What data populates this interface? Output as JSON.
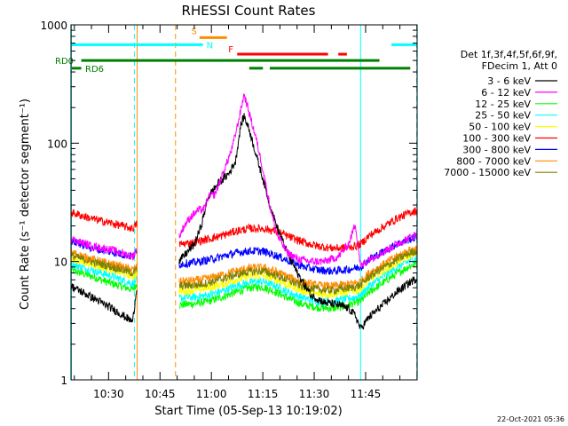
{
  "title": "RHESSI Count Rates",
  "footer_date": "22-Oct-2021 05:36",
  "legend": {
    "header": [
      "Det 1f,3f,4f,5f,6f,9f,",
      "FDecim 1, Att 0"
    ],
    "entries": [
      {
        "label": "3 - 6 keV",
        "color": "#000000"
      },
      {
        "label": "6 - 12 keV",
        "color": "#ff00ff"
      },
      {
        "label": "12 - 25 keV",
        "color": "#00ff00"
      },
      {
        "label": "25 - 50 keV",
        "color": "#00ffff"
      },
      {
        "label": "50 - 100 keV",
        "color": "#ffff00"
      },
      {
        "label": "100 - 300 keV",
        "color": "#ff0000"
      },
      {
        "label": "300 - 800 keV",
        "color": "#0000ff"
      },
      {
        "label": "800 - 7000 keV",
        "color": "#ff8c00"
      },
      {
        "label": "7000 - 15000 keV",
        "color": "#808000"
      }
    ]
  },
  "flags": [
    {
      "label": "S",
      "color": "#ff8c00",
      "segments": [
        [
          37.5,
          45.5
        ]
      ],
      "level": 780
    },
    {
      "label": "N",
      "color": "#00ffff",
      "segments": [
        [
          0,
          38.5
        ],
        [
          93.5,
          101
        ]
      ],
      "level": 680
    },
    {
      "label": "F",
      "color": "#ff0000",
      "segments": [
        [
          48.5,
          75
        ],
        [
          78,
          80.5
        ]
      ],
      "level": 565
    },
    {
      "label": "RD0",
      "color": "#008000",
      "segments": [
        [
          3,
          90
        ]
      ],
      "level": 500
    },
    {
      "label": "RD6",
      "color": "#008000",
      "segments": [
        [
          0,
          3
        ],
        [
          52,
          56
        ],
        [
          58,
          90
        ],
        [
          90,
          99
        ]
      ],
      "level": 430
    }
  ],
  "chart_data": {
    "type": "line",
    "title": "RHESSI Count Rates",
    "xlabel": "Start Time (05-Sep-13 10:19:02)",
    "ylabel": "Count Rate (s⁻¹ detector segment⁻¹)",
    "x_unit": "minutes after 10:19:02",
    "xlim": [
      0,
      101
    ],
    "ylim": [
      1,
      1000
    ],
    "yscale": "log",
    "x_ticks": [
      {
        "value": 10.97,
        "label": "10:30"
      },
      {
        "value": 25.97,
        "label": "10:45"
      },
      {
        "value": 40.97,
        "label": "11:00"
      },
      {
        "value": 55.97,
        "label": "11:15"
      },
      {
        "value": 70.97,
        "label": "11:30"
      },
      {
        "value": 85.97,
        "label": "11:45"
      }
    ],
    "y_ticks": [
      {
        "value": 1,
        "label": "1"
      },
      {
        "value": 10,
        "label": "10"
      },
      {
        "value": 100,
        "label": "100"
      },
      {
        "value": 1000,
        "label": "1000"
      }
    ],
    "vlines": [
      {
        "x": 0,
        "color": "#00ffff",
        "style": "solid"
      },
      {
        "x": 18.5,
        "color": "#00ffff",
        "style": "dashed"
      },
      {
        "x": 19.3,
        "color": "#ff8c00",
        "style": "solid"
      },
      {
        "x": 30.5,
        "color": "#ff8c00",
        "style": "dashed"
      },
      {
        "x": 84.5,
        "color": "#00ffff",
        "style": "solid"
      },
      {
        "x": 101.5,
        "color": "#00ffff",
        "style": "dashed"
      }
    ],
    "gap": [
      19.3,
      31.5
    ],
    "series": [
      {
        "name": "3 - 6 keV",
        "color": "#000000",
        "points": [
          [
            0,
            6.2
          ],
          [
            6,
            5.0
          ],
          [
            12,
            4.0
          ],
          [
            18,
            3.1
          ],
          [
            19.3,
            6.5
          ],
          [
            31.5,
            10.0
          ],
          [
            36,
            14.0
          ],
          [
            38,
            20.0
          ],
          [
            40,
            35.0
          ],
          [
            43,
            46.0
          ],
          [
            46,
            55.0
          ],
          [
            48,
            70.0
          ],
          [
            49.5,
            140.0
          ],
          [
            50.5,
            170.0
          ],
          [
            52,
            130.0
          ],
          [
            54,
            80.0
          ],
          [
            56,
            50.0
          ],
          [
            58,
            30.0
          ],
          [
            60,
            20.0
          ],
          [
            63,
            12.0
          ],
          [
            66,
            8.0
          ],
          [
            70,
            5.2
          ],
          [
            74,
            4.5
          ],
          [
            78,
            4.3
          ],
          [
            81,
            4.0
          ],
          [
            83,
            3.5
          ],
          [
            84.5,
            2.7
          ],
          [
            87,
            3.4
          ],
          [
            91,
            4.3
          ],
          [
            95,
            5.5
          ],
          [
            99,
            6.7
          ],
          [
            101,
            7.2
          ]
        ]
      },
      {
        "name": "6 - 12 keV",
        "color": "#ff00ff",
        "points": [
          [
            0,
            15.5
          ],
          [
            6,
            13.5
          ],
          [
            12,
            12.5
          ],
          [
            18,
            11.0
          ],
          [
            19.3,
            13.0
          ],
          [
            31.5,
            16.0
          ],
          [
            33,
            20.0
          ],
          [
            35,
            24.0
          ],
          [
            37,
            27.0
          ],
          [
            39,
            28.0
          ],
          [
            40,
            35.0
          ],
          [
            42,
            37.0
          ],
          [
            44,
            52.0
          ],
          [
            47,
            90.0
          ],
          [
            49,
            160.0
          ],
          [
            50.5,
            260.0
          ],
          [
            52,
            180.0
          ],
          [
            54,
            110.0
          ],
          [
            56,
            60.0
          ],
          [
            58,
            30.0
          ],
          [
            60,
            17.0
          ],
          [
            63,
            12.0
          ],
          [
            66,
            10.5
          ],
          [
            70,
            10.0
          ],
          [
            74,
            10.0
          ],
          [
            78,
            11.0
          ],
          [
            81,
            14.0
          ],
          [
            83,
            21.0
          ],
          [
            84.5,
            9.0
          ],
          [
            87,
            10.5
          ],
          [
            91,
            12.0
          ],
          [
            95,
            14.0
          ],
          [
            99,
            16.0
          ],
          [
            101,
            17.0
          ]
        ]
      },
      {
        "name": "12 - 25 keV",
        "color": "#00ff00",
        "points": [
          [
            0,
            8.5
          ],
          [
            6,
            7.5
          ],
          [
            12,
            6.5
          ],
          [
            18,
            5.8
          ],
          [
            19.3,
            6.5
          ],
          [
            31.5,
            4.3
          ],
          [
            36,
            4.4
          ],
          [
            40,
            4.6
          ],
          [
            44,
            5.0
          ],
          [
            48,
            5.5
          ],
          [
            52,
            6.0
          ],
          [
            56,
            6.1
          ],
          [
            60,
            5.5
          ],
          [
            64,
            4.8
          ],
          [
            68,
            4.3
          ],
          [
            72,
            4.1
          ],
          [
            76,
            4.0
          ],
          [
            80,
            4.2
          ],
          [
            83,
            4.5
          ],
          [
            84.5,
            4.6
          ],
          [
            87,
            5.5
          ],
          [
            91,
            6.6
          ],
          [
            95,
            7.9
          ],
          [
            99,
            9.2
          ],
          [
            101,
            9.8
          ]
        ]
      },
      {
        "name": "25 - 50 keV",
        "color": "#00ffff",
        "points": [
          [
            0,
            9.5
          ],
          [
            6,
            8.5
          ],
          [
            12,
            7.5
          ],
          [
            18,
            6.5
          ],
          [
            19.3,
            7.0
          ],
          [
            31.5,
            4.9
          ],
          [
            36,
            5.0
          ],
          [
            40,
            5.2
          ],
          [
            44,
            5.6
          ],
          [
            48,
            6.2
          ],
          [
            52,
            6.7
          ],
          [
            56,
            6.8
          ],
          [
            60,
            6.2
          ],
          [
            64,
            5.4
          ],
          [
            68,
            4.9
          ],
          [
            72,
            4.6
          ],
          [
            76,
            4.6
          ],
          [
            80,
            4.8
          ],
          [
            83,
            5.0
          ],
          [
            84.5,
            5.2
          ],
          [
            87,
            6.2
          ],
          [
            91,
            7.4
          ],
          [
            95,
            8.9
          ],
          [
            99,
            10.2
          ],
          [
            101,
            10.8
          ]
        ]
      },
      {
        "name": "50 - 100 keV",
        "color": "#ffff00",
        "points": [
          [
            0,
            10.5
          ],
          [
            6,
            9.5
          ],
          [
            12,
            8.5
          ],
          [
            18,
            7.5
          ],
          [
            19.3,
            8.0
          ],
          [
            31.5,
            5.6
          ],
          [
            36,
            5.7
          ],
          [
            40,
            6.0
          ],
          [
            44,
            6.4
          ],
          [
            48,
            7.0
          ],
          [
            52,
            7.5
          ],
          [
            56,
            7.6
          ],
          [
            60,
            7.0
          ],
          [
            64,
            6.2
          ],
          [
            68,
            5.6
          ],
          [
            72,
            5.3
          ],
          [
            76,
            5.3
          ],
          [
            80,
            5.5
          ],
          [
            83,
            5.7
          ],
          [
            84.5,
            5.9
          ],
          [
            87,
            7.0
          ],
          [
            91,
            8.3
          ],
          [
            95,
            9.8
          ],
          [
            99,
            11.3
          ],
          [
            101,
            11.9
          ]
        ]
      },
      {
        "name": "100 - 300 keV",
        "color": "#ff0000",
        "points": [
          [
            0,
            26.0
          ],
          [
            6,
            23.0
          ],
          [
            12,
            21.0
          ],
          [
            18,
            19.0
          ],
          [
            19.3,
            21.0
          ],
          [
            31.5,
            14.0
          ],
          [
            36,
            14.5
          ],
          [
            40,
            15.5
          ],
          [
            44,
            16.5
          ],
          [
            48,
            18.0
          ],
          [
            52,
            19.0
          ],
          [
            56,
            19.0
          ],
          [
            60,
            18.0
          ],
          [
            64,
            16.0
          ],
          [
            68,
            14.5
          ],
          [
            72,
            13.5
          ],
          [
            76,
            13.0
          ],
          [
            80,
            13.0
          ],
          [
            83,
            13.5
          ],
          [
            84.5,
            14.0
          ],
          [
            87,
            16.5
          ],
          [
            91,
            19.5
          ],
          [
            95,
            23.0
          ],
          [
            99,
            26.0
          ],
          [
            101,
            27.0
          ]
        ]
      },
      {
        "name": "300 - 800 keV",
        "color": "#0000ff",
        "points": [
          [
            0,
            15.0
          ],
          [
            6,
            13.0
          ],
          [
            12,
            12.0
          ],
          [
            18,
            11.0
          ],
          [
            19.3,
            12.0
          ],
          [
            31.5,
            9.5
          ],
          [
            36,
            9.8
          ],
          [
            40,
            10.3
          ],
          [
            44,
            11.0
          ],
          [
            48,
            11.8
          ],
          [
            52,
            12.3
          ],
          [
            56,
            12.2
          ],
          [
            60,
            11.2
          ],
          [
            64,
            10.0
          ],
          [
            68,
            9.0
          ],
          [
            72,
            8.5
          ],
          [
            76,
            8.3
          ],
          [
            80,
            8.5
          ],
          [
            83,
            8.8
          ],
          [
            84.5,
            9.0
          ],
          [
            87,
            10.5
          ],
          [
            91,
            12.0
          ],
          [
            95,
            14.0
          ],
          [
            99,
            15.5
          ],
          [
            101,
            16.0
          ]
        ]
      },
      {
        "name": "800 - 7000 keV",
        "color": "#ff8c00",
        "points": [
          [
            0,
            12.0
          ],
          [
            6,
            10.5
          ],
          [
            12,
            9.5
          ],
          [
            18,
            8.5
          ],
          [
            19.3,
            9.0
          ],
          [
            31.5,
            6.8
          ],
          [
            36,
            6.9
          ],
          [
            40,
            7.2
          ],
          [
            44,
            7.7
          ],
          [
            48,
            8.3
          ],
          [
            52,
            8.8
          ],
          [
            56,
            8.9
          ],
          [
            60,
            8.2
          ],
          [
            64,
            7.3
          ],
          [
            68,
            6.6
          ],
          [
            72,
            6.3
          ],
          [
            76,
            6.2
          ],
          [
            80,
            6.4
          ],
          [
            83,
            6.6
          ],
          [
            84.5,
            6.8
          ],
          [
            87,
            8.0
          ],
          [
            91,
            9.4
          ],
          [
            95,
            11.0
          ],
          [
            99,
            12.5
          ],
          [
            101,
            13.0
          ]
        ]
      },
      {
        "name": "7000 - 15000 keV",
        "color": "#808000",
        "points": [
          [
            0,
            11.2
          ],
          [
            6,
            10.0
          ],
          [
            12,
            9.0
          ],
          [
            18,
            8.0
          ],
          [
            19.3,
            8.5
          ],
          [
            31.5,
            6.2
          ],
          [
            36,
            6.3
          ],
          [
            40,
            6.6
          ],
          [
            44,
            7.1
          ],
          [
            48,
            7.7
          ],
          [
            52,
            8.2
          ],
          [
            56,
            8.3
          ],
          [
            60,
            7.6
          ],
          [
            64,
            6.8
          ],
          [
            68,
            6.1
          ],
          [
            72,
            5.8
          ],
          [
            76,
            5.7
          ],
          [
            80,
            5.9
          ],
          [
            83,
            6.1
          ],
          [
            84.5,
            6.3
          ],
          [
            87,
            7.4
          ],
          [
            91,
            8.8
          ],
          [
            95,
            10.3
          ],
          [
            99,
            11.8
          ],
          [
            101,
            12.4
          ]
        ]
      }
    ]
  }
}
